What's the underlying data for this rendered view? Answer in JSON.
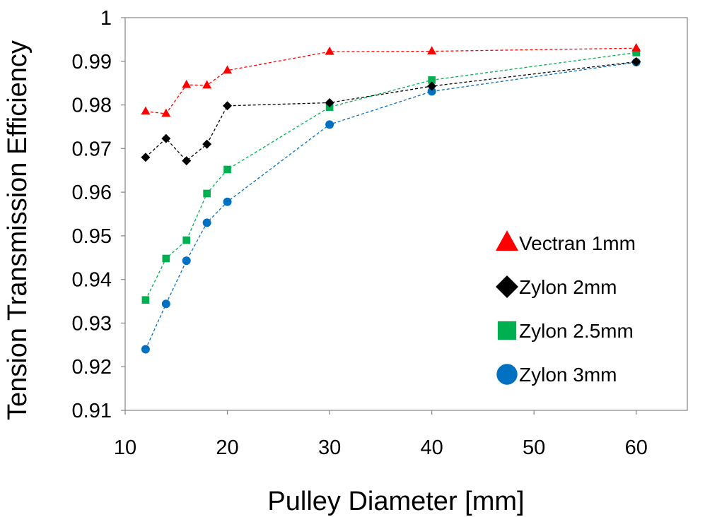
{
  "chart_data": {
    "type": "line",
    "title": "",
    "xlabel": "Pulley Diameter [mm]",
    "ylabel": "Tension Transmission Efficiency",
    "xlim": [
      10,
      65
    ],
    "ylim": [
      0.91,
      1.0
    ],
    "xticks": [
      10,
      20,
      30,
      40,
      50,
      60
    ],
    "yticks": [
      0.91,
      0.92,
      0.93,
      0.94,
      0.95,
      0.96,
      0.97,
      0.98,
      0.99,
      1
    ],
    "xtick_labels": [
      "10",
      "20",
      "30",
      "40",
      "50",
      "60"
    ],
    "ytick_labels": [
      "0.91",
      "0.92",
      "0.93",
      "0.94",
      "0.95",
      "0.96",
      "0.97",
      "0.98",
      "0.99",
      "1"
    ],
    "grid": false,
    "legend_position": "right",
    "series": [
      {
        "name": "Vectran 1mm",
        "marker": "triangle",
        "color": "#ff0000",
        "x": [
          12,
          14,
          16,
          18,
          20,
          30,
          40,
          60
        ],
        "y": [
          0.9785,
          0.978,
          0.9846,
          0.9845,
          0.9879,
          0.9922,
          0.9923,
          0.993
        ]
      },
      {
        "name": "Zylon 2mm",
        "marker": "diamond",
        "color": "#000000",
        "x": [
          12,
          14,
          16,
          18,
          20,
          30,
          40,
          60
        ],
        "y": [
          0.968,
          0.9723,
          0.9672,
          0.971,
          0.9798,
          0.9805,
          0.9843,
          0.9899
        ]
      },
      {
        "name": "Zylon 2.5mm",
        "marker": "square",
        "color": "#00b050",
        "x": [
          12,
          14,
          16,
          18,
          20,
          30,
          40,
          60
        ],
        "y": [
          0.9353,
          0.9448,
          0.949,
          0.9597,
          0.9652,
          0.9795,
          0.9857,
          0.992
        ]
      },
      {
        "name": "Zylon 3mm",
        "marker": "circle",
        "color": "#0070c0",
        "x": [
          12,
          14,
          16,
          18,
          20,
          30,
          40,
          60
        ],
        "y": [
          0.924,
          0.9344,
          0.9443,
          0.953,
          0.9578,
          0.9755,
          0.9831,
          0.9898
        ]
      }
    ]
  }
}
